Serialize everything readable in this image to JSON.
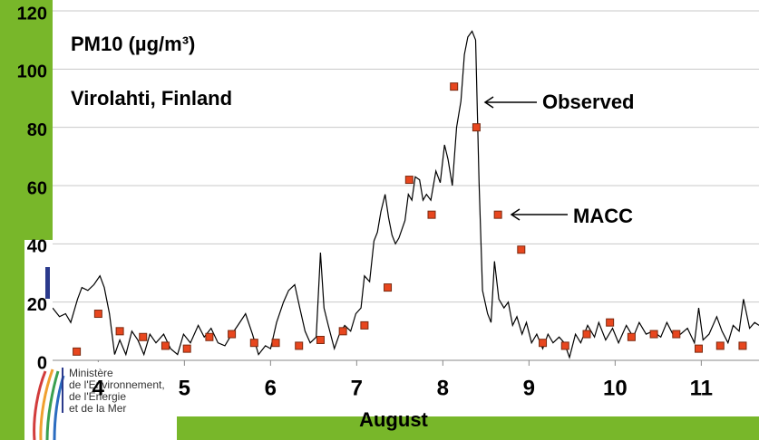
{
  "chart_data": {
    "type": "line",
    "title": "PM10 (µg/m³)",
    "subtitle": "Virolahti, Finland",
    "x_label": "August",
    "xlim": [
      3.47,
      11.67
    ],
    "xticks": [
      4,
      5,
      6,
      7,
      8,
      9,
      10,
      11
    ],
    "ylim": [
      0,
      120
    ],
    "yticks": [
      0,
      20,
      40,
      60,
      80,
      100,
      120
    ],
    "grid": true,
    "series": [
      {
        "name": "Observed",
        "color": "#000000",
        "x": [
          3.47,
          3.55,
          3.62,
          3.68,
          3.76,
          3.81,
          3.88,
          3.95,
          4.02,
          4.07,
          4.13,
          4.19,
          4.25,
          4.32,
          4.39,
          4.46,
          4.53,
          4.6,
          4.67,
          4.76,
          4.84,
          4.92,
          4.99,
          5.07,
          5.16,
          5.23,
          5.31,
          5.39,
          5.47,
          5.55,
          5.62,
          5.71,
          5.79,
          5.86,
          5.94,
          6.0,
          6.07,
          6.15,
          6.21,
          6.28,
          6.34,
          6.4,
          6.46,
          6.53,
          6.58,
          6.62,
          6.67,
          6.74,
          6.8,
          6.86,
          6.93,
          6.99,
          7.05,
          7.09,
          7.15,
          7.2,
          7.24,
          7.28,
          7.33,
          7.37,
          7.41,
          7.45,
          7.49,
          7.56,
          7.6,
          7.64,
          7.68,
          7.73,
          7.77,
          7.81,
          7.86,
          7.92,
          7.97,
          8.02,
          8.06,
          8.11,
          8.16,
          8.21,
          8.25,
          8.29,
          8.34,
          8.38,
          8.42,
          8.46,
          8.52,
          8.56,
          8.6,
          8.65,
          8.71,
          8.76,
          8.81,
          8.86,
          8.92,
          8.97,
          9.03,
          9.09,
          9.16,
          9.22,
          9.28,
          9.35,
          9.41,
          9.47,
          9.54,
          9.6,
          9.68,
          9.76,
          9.81,
          9.89,
          9.97,
          10.04,
          10.13,
          10.21,
          10.28,
          10.36,
          10.44,
          10.53,
          10.6,
          10.67,
          10.76,
          10.84,
          10.92,
          10.97,
          11.02,
          11.09,
          11.18,
          11.24,
          11.31,
          11.37,
          11.44,
          11.49,
          11.56,
          11.62,
          11.67
        ],
        "values": [
          18,
          15,
          16,
          13,
          21,
          25,
          24,
          26,
          29,
          25,
          16,
          2,
          7,
          2,
          10,
          7,
          2,
          9,
          6,
          9,
          4,
          2,
          9,
          6,
          12,
          8,
          11,
          6,
          5,
          9,
          12,
          16,
          9,
          2,
          5,
          4,
          13,
          20,
          24,
          26,
          18,
          10,
          6,
          8,
          37,
          18,
          12,
          4,
          9,
          12,
          10,
          16,
          18,
          29,
          27,
          41,
          44,
          51,
          57,
          49,
          43,
          40,
          42,
          48,
          57,
          55,
          63,
          62,
          55,
          57,
          55,
          65,
          61,
          74,
          69,
          60,
          80,
          89,
          105,
          111,
          113,
          110,
          61,
          24,
          16,
          13,
          34,
          21,
          18,
          20,
          12,
          15,
          9,
          13,
          6,
          9,
          4,
          9,
          6,
          8,
          6,
          1,
          9,
          6,
          12,
          8,
          13,
          7,
          11,
          6,
          12,
          8,
          13,
          9,
          10,
          8,
          13,
          9,
          9,
          11,
          6,
          18,
          7,
          9,
          15,
          10,
          6,
          12,
          10,
          21,
          11,
          13,
          12
        ]
      },
      {
        "name": "MACC",
        "color": "#e8461e",
        "marker": "square",
        "x": [
          3.75,
          4.0,
          4.25,
          4.52,
          4.78,
          5.03,
          5.29,
          5.55,
          5.81,
          6.06,
          6.33,
          6.58,
          6.84,
          7.09,
          7.36,
          7.61,
          7.87,
          8.13,
          8.39,
          8.64,
          8.91,
          9.16,
          9.42,
          9.67,
          9.94,
          10.19,
          10.45,
          10.71,
          10.97,
          11.22,
          11.48
        ],
        "values": [
          3,
          16,
          10,
          8,
          5,
          4,
          8,
          9,
          6,
          6,
          5,
          7,
          10,
          12,
          25,
          62,
          50,
          94,
          80,
          50,
          38,
          6,
          5,
          9,
          13,
          8,
          9,
          9,
          4,
          5,
          5
        ]
      }
    ]
  },
  "logo": {
    "lines": [
      "Ministère",
      "de l'Environnement,",
      "de l'Énergie",
      "et de la Mer"
    ]
  }
}
